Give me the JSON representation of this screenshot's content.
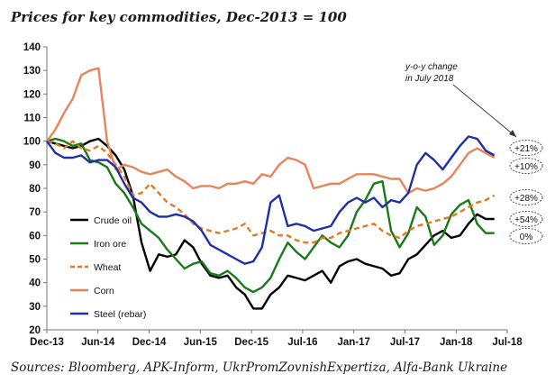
{
  "chart_data": {
    "type": "line",
    "title": "Prices for key commodities, Dec-2013 = 100",
    "source": "Sources: Bloomberg, APK-Inform, UkrPromZovnishExpertiza, Alfa-Bank Ukraine",
    "x_tick_labels": [
      "Dec-13",
      "Jun-14",
      "Dec-14",
      "Jun-15",
      "Dec-15",
      "Jul-16",
      "Jan-17",
      "Jul-17",
      "Jan-18",
      "Jul-18"
    ],
    "ylim": [
      20,
      140
    ],
    "y_ticks": [
      20,
      30,
      40,
      50,
      60,
      70,
      80,
      90,
      100,
      110,
      120,
      130,
      140
    ],
    "grid": false,
    "legend_position": "bottom-left",
    "annotation": {
      "line1": "y-o-y change",
      "line2": "in July 2018"
    },
    "series": [
      {
        "name": "Crude oil",
        "color": "#000000",
        "style": "solid",
        "values": [
          100,
          99,
          98,
          97,
          98,
          100,
          101,
          98,
          94,
          88,
          77,
          57,
          45,
          52,
          51,
          52,
          58,
          55,
          48,
          43,
          42,
          43,
          38,
          35,
          29,
          29,
          35,
          38,
          43,
          42,
          41,
          43,
          45,
          40,
          47,
          49,
          50,
          48,
          47,
          46,
          43,
          44,
          50,
          52,
          56,
          60,
          62,
          59,
          60,
          65,
          69,
          67,
          67
        ]
      },
      {
        "name": "Iron ore",
        "color": "#1a7a1a",
        "style": "solid",
        "values": [
          100,
          101,
          100,
          98,
          99,
          92,
          91,
          89,
          82,
          78,
          72,
          65,
          62,
          59,
          54,
          50,
          46,
          48,
          49,
          44,
          43,
          45,
          42,
          38,
          36,
          38,
          42,
          50,
          57,
          53,
          50,
          55,
          60,
          57,
          55,
          60,
          70,
          75,
          82,
          83,
          62,
          55,
          61,
          72,
          68,
          56,
          60,
          69,
          73,
          75,
          65,
          61,
          61
        ]
      },
      {
        "name": "Wheat",
        "color": "#e07b22",
        "style": "dashed",
        "values": [
          100,
          99,
          97,
          100,
          97,
          96,
          98,
          95,
          90,
          85,
          77,
          78,
          82,
          78,
          74,
          72,
          69,
          65,
          63,
          62,
          61,
          62,
          63,
          65,
          60,
          61,
          62,
          60,
          60,
          58,
          57,
          57,
          59,
          59,
          61,
          62,
          63,
          64,
          65,
          62,
          60,
          59,
          62,
          64,
          65,
          66,
          67,
          68,
          70,
          72,
          74,
          75,
          77
        ]
      },
      {
        "name": "Corn",
        "color": "#e8835a",
        "style": "solid",
        "values": [
          100,
          105,
          112,
          118,
          128,
          130,
          131,
          100,
          88,
          90,
          89,
          87,
          86,
          87,
          88,
          85,
          83,
          80,
          81,
          81,
          80,
          82,
          82,
          83,
          82,
          86,
          85,
          90,
          93,
          92,
          90,
          80,
          81,
          82,
          82,
          84,
          86,
          86,
          86,
          85,
          84,
          84,
          78,
          80,
          79,
          80,
          82,
          85,
          90,
          95,
          97,
          95,
          93
        ]
      },
      {
        "name": "Steel (rebar)",
        "color": "#1f2fa8",
        "style": "solid",
        "values": [
          100,
          95,
          93,
          93,
          94,
          91,
          92,
          92,
          89,
          82,
          76,
          74,
          70,
          68,
          68,
          69,
          68,
          66,
          62,
          56,
          54,
          52,
          50,
          48,
          49,
          55,
          74,
          77,
          64,
          65,
          64,
          62,
          63,
          64,
          70,
          74,
          76,
          74,
          76,
          72,
          75,
          74,
          78,
          90,
          95,
          92,
          88,
          93,
          98,
          102,
          101,
          96,
          94
        ]
      }
    ],
    "yoy_change_labels": [
      "+21%",
      "+10%",
      "+28%",
      "+54%",
      "0%"
    ]
  }
}
